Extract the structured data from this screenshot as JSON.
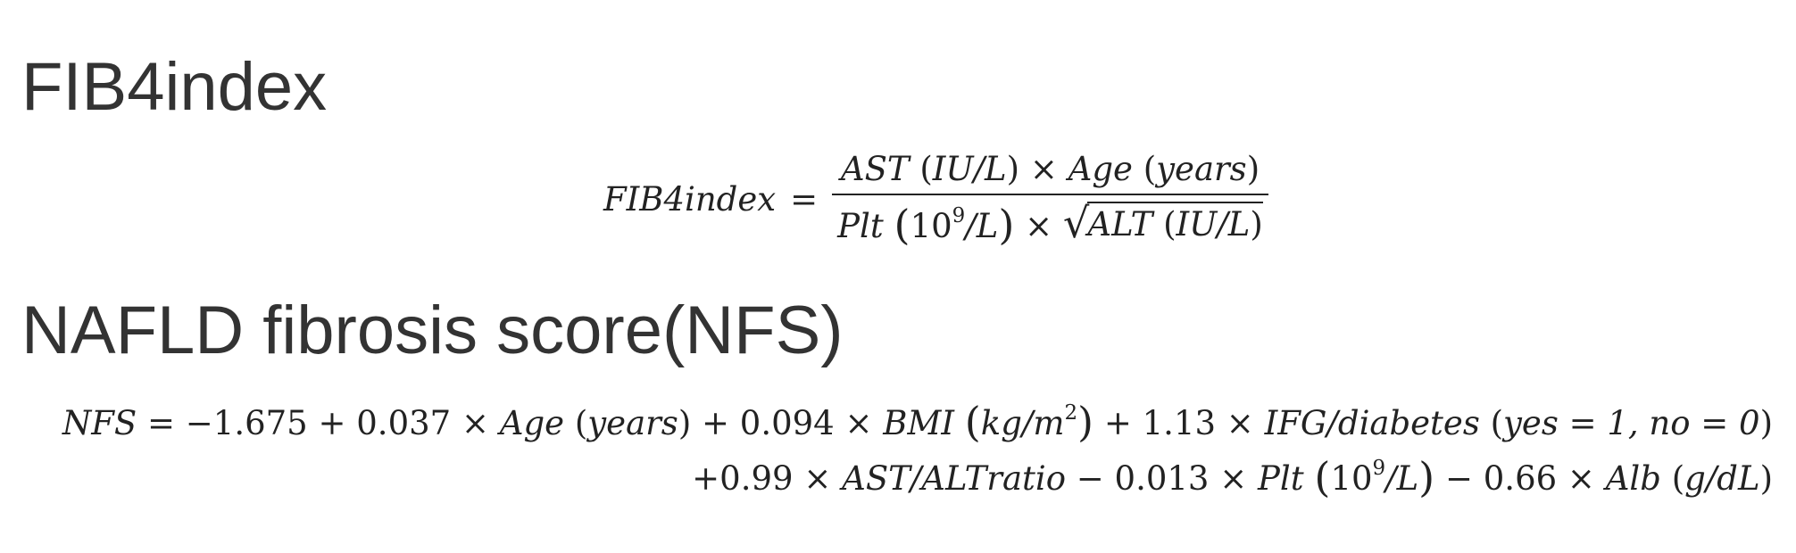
{
  "sections": [
    {
      "heading": "FIB4index",
      "formula": {
        "lhs": "FIB4index",
        "eq": "=",
        "numerator": {
          "ast": "AST",
          "ast_unit": "IU/L",
          "times": "×",
          "age": "Age",
          "age_unit": "years"
        },
        "denominator": {
          "plt": "Plt",
          "plt_unit_base": "10",
          "plt_unit_exp": "9",
          "plt_unit_rest": "/L",
          "times": "×",
          "alt": "ALT",
          "alt_unit": "IU/L"
        }
      }
    },
    {
      "heading": "NAFLD fibrosis score(NFS)",
      "formula": {
        "line1": {
          "lhs": "NFS",
          "eq": "=",
          "c0": "−1.675",
          "plus1": "+",
          "c1": "0.037",
          "times1": "×",
          "age": "Age",
          "age_unit": "years",
          "plus2": "+",
          "c2": "0.094",
          "times2": "×",
          "bmi": "BMI",
          "bmi_unit_base": "kg/m",
          "bmi_unit_exp": "2",
          "plus3": "+",
          "c3": "1.13",
          "times3": "×",
          "ifg": "IFG/diabetes",
          "ifg_cond": "yes = 1, no = 0"
        },
        "line2": {
          "c4": "+0.99",
          "times4": "×",
          "ratio": "AST/ALTratio",
          "minus1": "−",
          "c5": "0.013",
          "times5": "×",
          "plt": "Plt",
          "plt_unit_base": "10",
          "plt_unit_exp": "9",
          "plt_unit_rest": "/L",
          "minus2": "−",
          "c6": "0.66",
          "times6": "×",
          "alb": "Alb",
          "alb_unit": "g/dL"
        }
      }
    }
  ]
}
